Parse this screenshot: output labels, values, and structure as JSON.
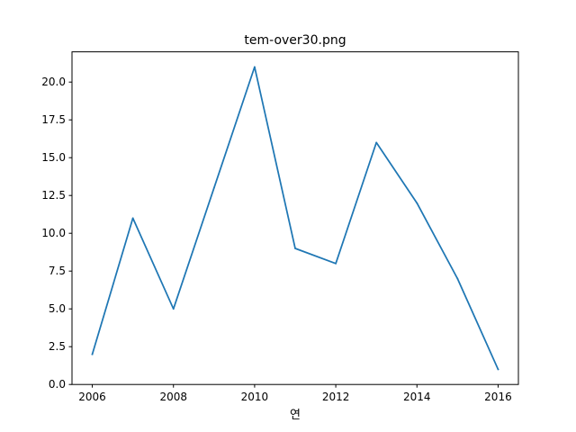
{
  "chart_data": {
    "type": "line",
    "title": "tem-over30.png",
    "xlabel": "연",
    "ylabel": "",
    "xlim": [
      2005.5,
      2016.5
    ],
    "ylim": [
      0,
      22
    ],
    "x_ticks": [
      2006,
      2008,
      2010,
      2012,
      2014,
      2016
    ],
    "y_ticks": [
      0.0,
      2.5,
      5.0,
      7.5,
      10.0,
      12.5,
      15.0,
      17.5,
      20.0
    ],
    "y_tick_labels": [
      "0.0",
      "2.5",
      "5.0",
      "7.5",
      "10.0",
      "12.5",
      "15.0",
      "17.5",
      "20.0"
    ],
    "grid": false,
    "series": [
      {
        "x": [
          2006,
          2007,
          2008,
          2009,
          2010,
          2011,
          2012,
          2013,
          2014,
          2015,
          2016
        ],
        "y": [
          2,
          11,
          5,
          13,
          21,
          9,
          8,
          16,
          12,
          7,
          1
        ],
        "color": "#1f77b4"
      }
    ]
  }
}
